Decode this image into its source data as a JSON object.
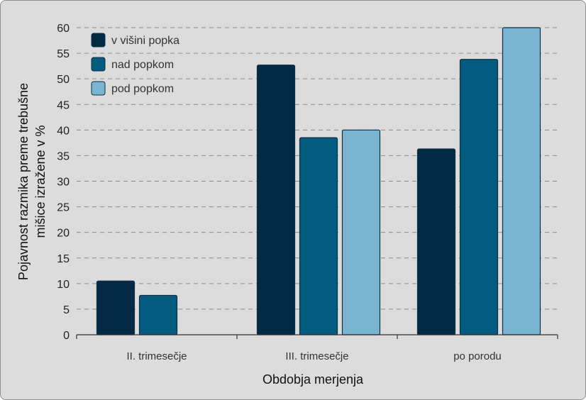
{
  "chart_data": {
    "type": "bar",
    "title": "",
    "xlabel": "Obdobja merjenja",
    "ylabel_lines": [
      "Pojavnost razmika preme trebušne",
      "mišice izražene v %"
    ],
    "categories": [
      "II. trimesečje",
      "III. trimesečje",
      "po porodu"
    ],
    "series": [
      {
        "name": "v višini popka",
        "values": [
          10.5,
          52.7,
          36.3
        ],
        "color": "#032a45"
      },
      {
        "name": "nad popkom",
        "values": [
          7.7,
          38.5,
          53.8
        ],
        "color": "#035b80"
      },
      {
        "name": "pod popkom",
        "values": [
          null,
          40.0,
          60.0
        ],
        "color": "#79b5d3"
      }
    ],
    "ylim": [
      0,
      60
    ],
    "yticks": [
      0,
      5,
      10,
      15,
      20,
      25,
      30,
      35,
      40,
      45,
      50,
      55,
      60
    ],
    "grid": true,
    "legend_position": "top-left"
  }
}
